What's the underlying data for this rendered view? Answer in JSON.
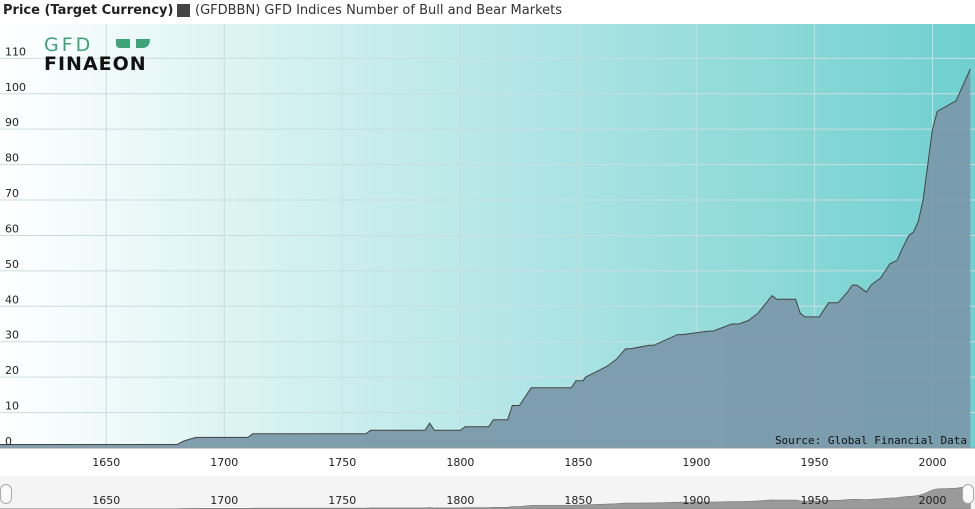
{
  "header": {
    "ylabel": "Price (Target Currency)",
    "legend_label": "(GFDBBN) GFD Indices Number of Bull and Bear Markets",
    "legend_color": "#444444"
  },
  "logo": {
    "line1": "GFD",
    "line2": "FINAEON"
  },
  "source": "Source: Global Financial Data",
  "colors": {
    "bg_start": "#ffffff",
    "bg_end": "#6fcfcf",
    "area_fill": "#7a9aab",
    "line": "#444444",
    "grid": "#c9dde0",
    "logo_green": "#3fa37a"
  },
  "chart_data": {
    "type": "area",
    "title": "",
    "ylabel": "Price (Target Currency)",
    "xlabel": "",
    "legend": "top-left",
    "grid": true,
    "xlim": [
      1605,
      2018
    ],
    "ylim": [
      0,
      118
    ],
    "yticks": [
      0,
      10,
      20,
      30,
      40,
      50,
      60,
      70,
      80,
      90,
      100,
      110
    ],
    "xticks": [
      1650,
      1700,
      1750,
      1800,
      1850,
      1900,
      1950,
      2000
    ],
    "series": [
      {
        "name": "(GFDBBN) GFD Indices Number of Bull and Bear Markets",
        "x": [
          1605,
          1680,
          1683,
          1688,
          1710,
          1712,
          1760,
          1762,
          1785,
          1787,
          1789,
          1800,
          1802,
          1812,
          1814,
          1820,
          1822,
          1825,
          1827,
          1830,
          1835,
          1847,
          1849,
          1852,
          1853,
          1856,
          1859,
          1862,
          1864,
          1866,
          1870,
          1872,
          1880,
          1882,
          1892,
          1894,
          1905,
          1907,
          1915,
          1918,
          1922,
          1924,
          1926,
          1932,
          1934,
          1936,
          1938,
          1942,
          1944,
          1946,
          1952,
          1954,
          1956,
          1960,
          1964,
          1966,
          1968,
          1972,
          1974,
          1976,
          1978,
          1980,
          1982,
          1985,
          1987,
          1990,
          1992,
          1994,
          1996,
          1998,
          2000,
          2002,
          2010,
          2016
        ],
        "values": [
          1,
          1,
          2,
          3,
          3,
          4,
          4,
          5,
          5,
          7,
          5,
          5,
          6,
          6,
          8,
          8,
          12,
          12,
          14,
          17,
          17,
          17,
          19,
          19,
          20,
          21,
          22,
          23,
          24,
          25,
          28,
          28,
          29,
          29,
          32,
          32,
          33,
          33,
          35,
          35,
          36,
          37,
          38,
          43,
          42,
          42,
          42,
          42,
          38,
          37,
          37,
          39,
          41,
          41,
          44,
          46,
          46,
          44,
          46,
          47,
          48,
          50,
          52,
          53,
          56,
          60,
          61,
          64,
          70,
          80,
          90,
          95,
          98,
          107
        ]
      }
    ]
  },
  "navigator": {
    "labels": [
      "1650",
      "1700",
      "1750",
      "1800",
      "1850",
      "1900",
      "1950",
      "2000"
    ]
  }
}
